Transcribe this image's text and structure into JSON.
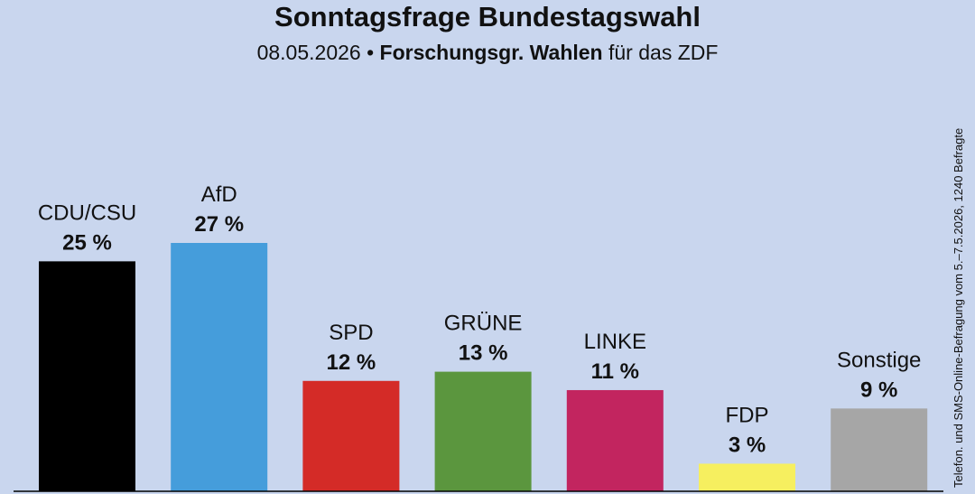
{
  "title": "Sonntagsfrage Bundestagswahl",
  "subtitle": {
    "date": "08.05.2026",
    "bullet": "•",
    "source": "Forschungsgr. Wahlen",
    "suffix": "für das ZDF"
  },
  "side_note": "Telefon. und SMS-Online-Befragung vom 5.–7.5.2026, 1240 Befragte",
  "chart_data": {
    "type": "bar",
    "title": "Sonntagsfrage Bundestagswahl",
    "categories": [
      "CDU/CSU",
      "AfD",
      "SPD",
      "GRÜNE",
      "LINKE",
      "FDP",
      "Sonstige"
    ],
    "values": [
      25,
      27,
      12,
      13,
      11,
      3,
      9
    ],
    "value_labels": [
      "25 %",
      "27 %",
      "12 %",
      "13 %",
      "11 %",
      "3 %",
      "9 %"
    ],
    "colors": [
      "#000000",
      "#459ddb",
      "#d42b27",
      "#5b963e",
      "#c2255f",
      "#f6ef5f",
      "#a6a6a6"
    ],
    "unit": "%",
    "ylim": [
      0,
      27
    ],
    "grid": false,
    "legend": "none"
  }
}
